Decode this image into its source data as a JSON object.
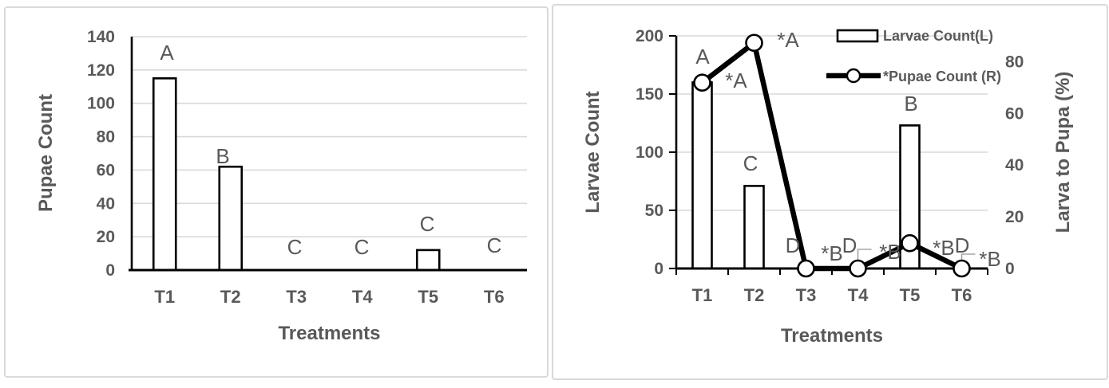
{
  "colors": {
    "text": "#595959",
    "gridline": "#d9d9d9",
    "axis": "#000000",
    "bar_fill": "#ffffff",
    "bar_stroke": "#000000",
    "line": "#000000",
    "marker_fill": "#ffffff",
    "leader": "#a6a6a6",
    "panel_border": "#d9d9d9"
  },
  "chart_data": [
    {
      "type": "bar",
      "title": "",
      "categories": [
        "T1",
        "T2",
        "T3",
        "T4",
        "T5",
        "T6"
      ],
      "values": [
        115,
        62,
        0,
        0,
        12,
        0
      ],
      "point_labels": [
        "A",
        "B",
        "C",
        "C",
        "C",
        "C"
      ],
      "xlabel": "Treatments",
      "ylabel": "Pupae Count",
      "ylim": [
        0,
        140
      ],
      "yticks": [
        0,
        20,
        40,
        60,
        80,
        100,
        120,
        140
      ],
      "grid": true,
      "legend": null
    },
    {
      "type": "combo bar+line",
      "title": "",
      "categories": [
        "T1",
        "T2",
        "T3",
        "T4",
        "T5",
        "T6"
      ],
      "series": [
        {
          "name": "Larvae Count(L)",
          "type": "bar",
          "axis": "left",
          "values": [
            160,
            71,
            0,
            0,
            123,
            0
          ],
          "point_labels": [
            "A",
            "C",
            "D",
            "D",
            "B",
            "D"
          ]
        },
        {
          "name": "*Pupae Count (R)",
          "type": "line",
          "axis": "right",
          "values": [
            71.9,
            87.3,
            0,
            0,
            9.8,
            0
          ],
          "point_labels": [
            "*A",
            "*A",
            "*B",
            "*B",
            "*B",
            "*B"
          ]
        }
      ],
      "xlabel": "Treatments",
      "ylabel_left": "Larvae Count",
      "ylabel_right": "Larva to Pupa (%)",
      "ylim_left": [
        0,
        200
      ],
      "yticks_left": [
        0,
        50,
        100,
        150,
        200
      ],
      "ylim_right": [
        0,
        90
      ],
      "yticks_right": [
        0,
        20,
        40,
        60,
        80
      ],
      "grid": true,
      "legend_position": "top-right"
    }
  ]
}
